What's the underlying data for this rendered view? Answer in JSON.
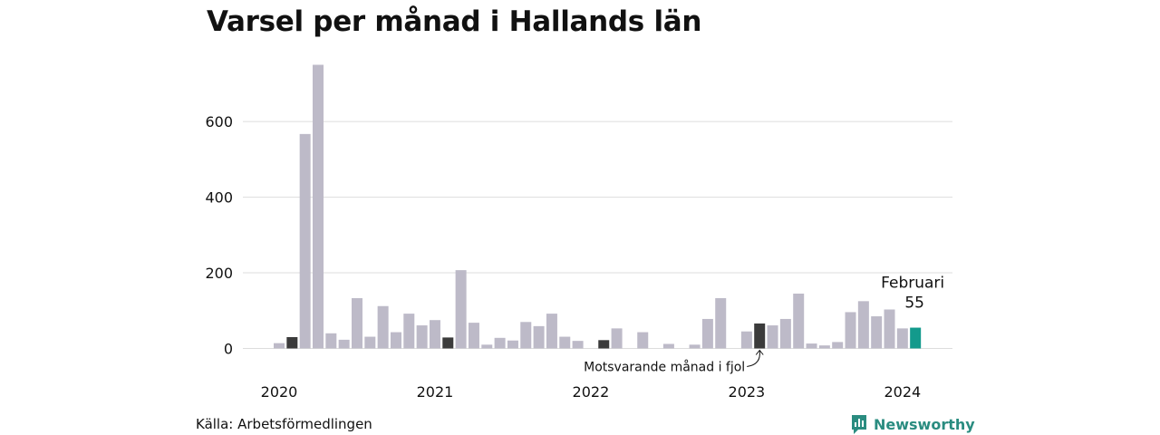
{
  "colors": {
    "bar": "#bdbac8",
    "bar_same_month": "#3b3b3b",
    "bar_current": "#139a8c",
    "grid": "#dddddd",
    "brand": "#2a8c80"
  },
  "chart_data": {
    "type": "bar",
    "title": "Varsel per månad i Hallands län",
    "ylim": [
      0,
      750
    ],
    "yticks": [
      0,
      200,
      400,
      600
    ],
    "grid": true,
    "start": "2020-01",
    "end": "2024-02",
    "xtick_labels": [
      "2020",
      "2021",
      "2022",
      "2023",
      "2024"
    ],
    "values": [
      14,
      30,
      567,
      750,
      40,
      23,
      133,
      31,
      112,
      43,
      92,
      61,
      75,
      29,
      207,
      68,
      10,
      28,
      21,
      70,
      59,
      92,
      31,
      20,
      0,
      22,
      53,
      0,
      43,
      0,
      12,
      0,
      10,
      78,
      133,
      0,
      45,
      66,
      61,
      78,
      145,
      13,
      8,
      17,
      96,
      125,
      85,
      103,
      53,
      55
    ],
    "highlight_same_month": [
      1,
      13,
      25,
      37
    ],
    "highlight_current": 49,
    "current_label": "Februari",
    "current_value_label": "55",
    "annotation": "Motsvarande månad i fjol"
  },
  "source": "Källa: Arbetsförmedlingen",
  "logo": {
    "text": "Newsworthy",
    "icon": "bar-chart-bubble-icon"
  }
}
